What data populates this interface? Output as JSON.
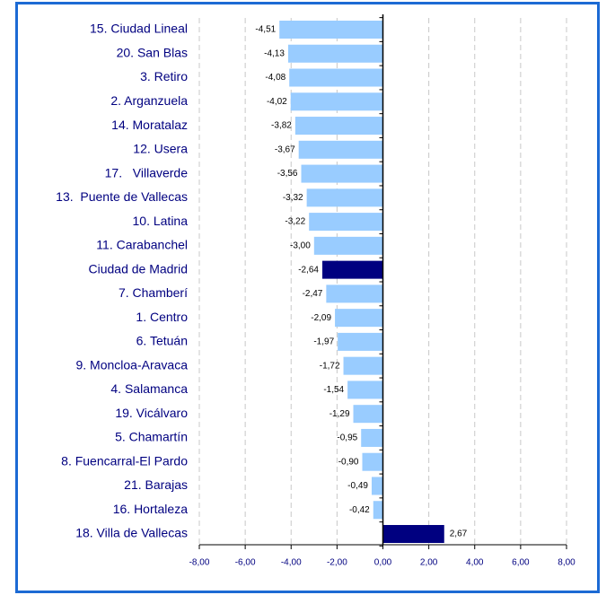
{
  "chart_data": {
    "type": "hbar",
    "categories": [
      "15. Ciudad Lineal",
      "20. San Blas",
      "3. Retiro",
      "2. Arganzuela",
      "14. Moratalaz",
      "12. Usera",
      "17.   Villaverde",
      "13.  Puente de Vallecas",
      "10. Latina",
      "11. Carabanchel",
      "Ciudad de Madrid",
      "7. Chamberí",
      "1. Centro",
      "6. Tetuán",
      "9. Moncloa-Aravaca",
      "4. Salamanca",
      "19. Vicálvaro",
      "5. Chamartín",
      "8. Fuencarral-El Pardo",
      "21. Barajas",
      "16. Hortaleza",
      "18. Villa de Vallecas"
    ],
    "values": [
      -4.51,
      -4.13,
      -4.08,
      -4.02,
      -3.82,
      -3.67,
      -3.56,
      -3.32,
      -3.22,
      -3.0,
      -2.64,
      -2.47,
      -2.09,
      -1.97,
      -1.72,
      -1.54,
      -1.29,
      -0.95,
      -0.9,
      -0.49,
      -0.42,
      2.67
    ],
    "value_labels": [
      "-4,51",
      "-4,13",
      "-4,08",
      "-4,02",
      "-3,82",
      "-3,67",
      "-3,56",
      "-3,32",
      "-3,22",
      "-3,00",
      "-2,64",
      "-2,47",
      "-2,09",
      "-1,97",
      "-1,72",
      "-1,54",
      "-1,29",
      "-0,95",
      "-0,90",
      "-0,49",
      "-0,42",
      "2,67"
    ],
    "colors": [
      "#99ccff",
      "#99ccff",
      "#99ccff",
      "#99ccff",
      "#99ccff",
      "#99ccff",
      "#99ccff",
      "#99ccff",
      "#99ccff",
      "#99ccff",
      "#000080",
      "#99ccff",
      "#99ccff",
      "#99ccff",
      "#99ccff",
      "#99ccff",
      "#99ccff",
      "#99ccff",
      "#99ccff",
      "#99ccff",
      "#99ccff",
      "#000080"
    ],
    "xlim": [
      -8,
      8
    ],
    "xticks": [
      {
        "value": -8,
        "label": "-8,00"
      },
      {
        "value": -6,
        "label": "-6,00"
      },
      {
        "value": -4,
        "label": "-4,00"
      },
      {
        "value": -2,
        "label": "-2,00"
      },
      {
        "value": 0,
        "label": "0,00"
      },
      {
        "value": 2,
        "label": "2,00"
      },
      {
        "value": 4,
        "label": "4,00"
      },
      {
        "value": 6,
        "label": "6,00"
      },
      {
        "value": 8,
        "label": "8,00"
      }
    ],
    "grid": true
  }
}
